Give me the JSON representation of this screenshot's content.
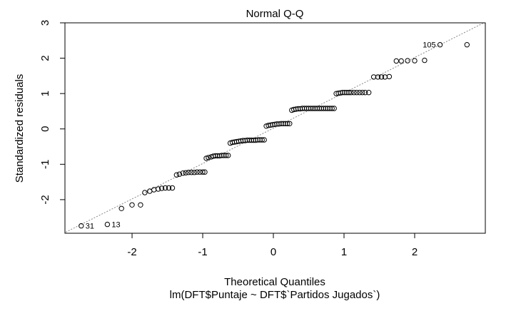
{
  "chart_data": {
    "type": "scatter",
    "title": "Normal Q-Q",
    "xlabel": "Theoretical Quantiles",
    "ylabel": "Standardized residuals",
    "subtitle": "lm(DFT$Puntaje ~ DFT$`Partidos Jugados`)",
    "xlim": [
      -2.95,
      3.0
    ],
    "ylim": [
      -2.95,
      3.0
    ],
    "x_ticks": [
      -2,
      -1,
      0,
      1,
      2
    ],
    "y_ticks": [
      -2,
      -1,
      0,
      1,
      2,
      3
    ],
    "x_tick_labels": [
      "-2",
      "-1",
      "0",
      "1",
      "2"
    ],
    "y_tick_labels": [
      "-2",
      "-1",
      "0",
      "1",
      "2",
      "3"
    ],
    "reference_line": {
      "intercept": 0.02,
      "slope": 1.0,
      "style": "dotted",
      "color": "#888888"
    },
    "grid": false,
    "legend": "none",
    "marker": "open-circle",
    "annotations": [
      {
        "label": "31",
        "x": -2.72,
        "y": -2.74
      },
      {
        "label": "13",
        "x": -2.35,
        "y": -2.7
      },
      {
        "label": "105",
        "x": 2.36,
        "y": 2.38
      }
    ],
    "series": [
      {
        "points": [
          [
            -2.72,
            -2.74
          ],
          [
            -2.35,
            -2.7
          ],
          [
            -2.15,
            -2.25
          ],
          [
            -2.0,
            -2.15
          ],
          [
            -1.88,
            -2.15
          ],
          [
            -1.82,
            -1.8
          ],
          [
            -1.75,
            -1.76
          ],
          [
            -1.69,
            -1.72
          ],
          [
            -1.63,
            -1.7
          ],
          [
            -1.58,
            -1.68
          ],
          [
            -1.53,
            -1.67
          ],
          [
            -1.48,
            -1.67
          ],
          [
            -1.43,
            -1.67
          ],
          [
            -1.37,
            -1.3
          ],
          [
            -1.33,
            -1.28
          ],
          [
            -1.28,
            -1.25
          ],
          [
            -1.24,
            -1.24
          ],
          [
            -1.2,
            -1.23
          ],
          [
            -1.16,
            -1.23
          ],
          [
            -1.12,
            -1.23
          ],
          [
            -1.08,
            -1.22
          ],
          [
            -1.04,
            -1.22
          ],
          [
            -1.0,
            -1.22
          ],
          [
            -0.97,
            -1.22
          ],
          [
            -0.95,
            -0.83
          ],
          [
            -0.92,
            -0.81
          ],
          [
            -0.88,
            -0.79
          ],
          [
            -0.85,
            -0.77
          ],
          [
            -0.82,
            -0.76
          ],
          [
            -0.79,
            -0.76
          ],
          [
            -0.76,
            -0.76
          ],
          [
            -0.73,
            -0.75
          ],
          [
            -0.7,
            -0.75
          ],
          [
            -0.67,
            -0.75
          ],
          [
            -0.64,
            -0.75
          ],
          [
            -0.61,
            -0.4
          ],
          [
            -0.58,
            -0.38
          ],
          [
            -0.55,
            -0.37
          ],
          [
            -0.52,
            -0.36
          ],
          [
            -0.49,
            -0.35
          ],
          [
            -0.46,
            -0.34
          ],
          [
            -0.43,
            -0.33
          ],
          [
            -0.4,
            -0.33
          ],
          [
            -0.37,
            -0.32
          ],
          [
            -0.34,
            -0.32
          ],
          [
            -0.31,
            -0.32
          ],
          [
            -0.28,
            -0.32
          ],
          [
            -0.25,
            -0.32
          ],
          [
            -0.22,
            -0.31
          ],
          [
            -0.19,
            -0.31
          ],
          [
            -0.16,
            -0.31
          ],
          [
            -0.13,
            -0.31
          ],
          [
            -0.1,
            0.08
          ],
          [
            -0.07,
            0.1
          ],
          [
            -0.04,
            0.11
          ],
          [
            -0.01,
            0.12
          ],
          [
            0.02,
            0.13
          ],
          [
            0.05,
            0.14
          ],
          [
            0.08,
            0.14
          ],
          [
            0.11,
            0.15
          ],
          [
            0.14,
            0.15
          ],
          [
            0.17,
            0.15
          ],
          [
            0.2,
            0.15
          ],
          [
            0.23,
            0.15
          ],
          [
            0.26,
            0.53
          ],
          [
            0.29,
            0.55
          ],
          [
            0.32,
            0.56
          ],
          [
            0.35,
            0.57
          ],
          [
            0.38,
            0.57
          ],
          [
            0.41,
            0.58
          ],
          [
            0.44,
            0.58
          ],
          [
            0.47,
            0.58
          ],
          [
            0.5,
            0.58
          ],
          [
            0.53,
            0.58
          ],
          [
            0.56,
            0.58
          ],
          [
            0.59,
            0.58
          ],
          [
            0.62,
            0.58
          ],
          [
            0.65,
            0.58
          ],
          [
            0.68,
            0.58
          ],
          [
            0.71,
            0.58
          ],
          [
            0.74,
            0.58
          ],
          [
            0.77,
            0.58
          ],
          [
            0.8,
            0.58
          ],
          [
            0.83,
            0.58
          ],
          [
            0.86,
            0.58
          ],
          [
            0.89,
            1.0
          ],
          [
            0.92,
            1.01
          ],
          [
            0.95,
            1.02
          ],
          [
            0.98,
            1.03
          ],
          [
            1.01,
            1.03
          ],
          [
            1.04,
            1.03
          ],
          [
            1.07,
            1.03
          ],
          [
            1.1,
            1.03
          ],
          [
            1.14,
            1.03
          ],
          [
            1.18,
            1.03
          ],
          [
            1.22,
            1.03
          ],
          [
            1.26,
            1.03
          ],
          [
            1.3,
            1.03
          ],
          [
            1.35,
            1.03
          ],
          [
            1.42,
            1.47
          ],
          [
            1.48,
            1.47
          ],
          [
            1.53,
            1.47
          ],
          [
            1.58,
            1.47
          ],
          [
            1.64,
            1.48
          ],
          [
            1.74,
            1.92
          ],
          [
            1.81,
            1.92
          ],
          [
            1.9,
            1.93
          ],
          [
            2.0,
            1.93
          ],
          [
            2.14,
            1.94
          ],
          [
            2.36,
            2.38
          ],
          [
            2.74,
            2.38
          ]
        ]
      }
    ]
  }
}
